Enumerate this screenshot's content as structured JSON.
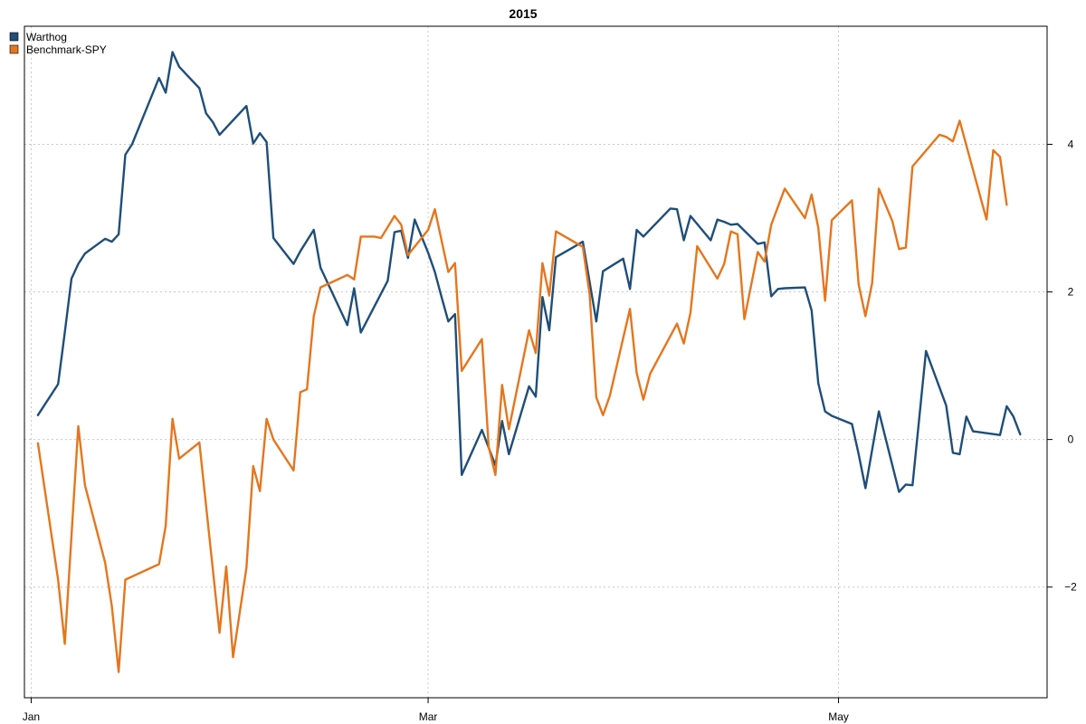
{
  "chart_data": {
    "type": "line",
    "title": "2015",
    "xlabel": "",
    "ylabel": "",
    "x_ticks": [
      "Jan",
      "Mar",
      "May"
    ],
    "x_tick_positions": [
      0,
      59,
      120
    ],
    "y_ticks": [
      -2,
      0,
      2,
      4
    ],
    "xlim": [
      -1,
      151
    ],
    "ylim": [
      -3.5,
      5.6
    ],
    "grid": true,
    "legend_position": "top-left",
    "series": [
      {
        "name": "Warthog",
        "color": "#1F4E79",
        "points": [
          [
            1,
            0.33
          ],
          [
            4,
            0.75
          ],
          [
            5,
            1.45
          ],
          [
            6,
            2.18
          ],
          [
            7,
            2.38
          ],
          [
            8,
            2.52
          ],
          [
            11,
            2.72
          ],
          [
            12,
            2.68
          ],
          [
            13,
            2.78
          ],
          [
            14,
            3.86
          ],
          [
            15,
            4.0
          ],
          [
            17,
            4.45
          ],
          [
            19,
            4.9
          ],
          [
            20,
            4.7
          ],
          [
            21,
            5.25
          ],
          [
            22,
            5.05
          ],
          [
            25,
            4.76
          ],
          [
            26,
            4.42
          ],
          [
            27,
            4.3
          ],
          [
            28,
            4.13
          ],
          [
            32,
            4.52
          ],
          [
            33,
            4.01
          ],
          [
            34,
            4.15
          ],
          [
            35,
            4.03
          ],
          [
            36,
            2.73
          ],
          [
            39,
            2.38
          ],
          [
            40,
            2.55
          ],
          [
            42,
            2.84
          ],
          [
            43,
            2.33
          ],
          [
            47,
            1.55
          ],
          [
            48,
            2.05
          ],
          [
            49,
            1.45
          ],
          [
            53,
            2.15
          ],
          [
            54,
            2.81
          ],
          [
            55,
            2.83
          ],
          [
            56,
            2.46
          ],
          [
            57,
            2.98
          ],
          [
            59,
            2.53
          ],
          [
            60,
            2.27
          ],
          [
            61,
            1.93
          ],
          [
            62,
            1.6
          ],
          [
            63,
            1.7
          ],
          [
            64,
            -0.48
          ],
          [
            67,
            0.13
          ],
          [
            69,
            -0.35
          ],
          [
            70,
            0.25
          ],
          [
            71,
            -0.2
          ],
          [
            74,
            0.72
          ],
          [
            75,
            0.58
          ],
          [
            76,
            1.93
          ],
          [
            77,
            1.48
          ],
          [
            78,
            2.47
          ],
          [
            82,
            2.68
          ],
          [
            84,
            1.6
          ],
          [
            85,
            2.28
          ],
          [
            88,
            2.45
          ],
          [
            89,
            2.04
          ],
          [
            90,
            2.84
          ],
          [
            91,
            2.75
          ],
          [
            95,
            3.13
          ],
          [
            96,
            3.12
          ],
          [
            97,
            2.7
          ],
          [
            98,
            3.03
          ],
          [
            101,
            2.7
          ],
          [
            102,
            2.98
          ],
          [
            103,
            2.95
          ],
          [
            104,
            2.91
          ],
          [
            105,
            2.92
          ],
          [
            108,
            2.65
          ],
          [
            109,
            2.67
          ],
          [
            110,
            1.94
          ],
          [
            111,
            2.04
          ],
          [
            112,
            2.05
          ],
          [
            115,
            2.06
          ],
          [
            116,
            1.75
          ],
          [
            117,
            0.76
          ],
          [
            118,
            0.38
          ],
          [
            119,
            0.32
          ],
          [
            122,
            0.21
          ],
          [
            123,
            -0.2
          ],
          [
            124,
            -0.66
          ],
          [
            126,
            0.38
          ],
          [
            129,
            -0.71
          ],
          [
            130,
            -0.61
          ],
          [
            131,
            -0.62
          ],
          [
            133,
            1.2
          ],
          [
            136,
            0.46
          ],
          [
            137,
            -0.18
          ],
          [
            138,
            -0.2
          ],
          [
            139,
            0.31
          ],
          [
            140,
            0.11
          ],
          [
            144,
            0.06
          ],
          [
            145,
            0.45
          ],
          [
            146,
            0.31
          ],
          [
            147,
            0.07
          ]
        ]
      },
      {
        "name": "Benchmark-SPY",
        "color": "#E5761D",
        "points": [
          [
            1,
            -0.05
          ],
          [
            4,
            -1.9
          ],
          [
            5,
            -2.77
          ],
          [
            7,
            0.18
          ],
          [
            8,
            -0.62
          ],
          [
            11,
            -1.67
          ],
          [
            12,
            -2.26
          ],
          [
            13,
            -3.15
          ],
          [
            14,
            -1.9
          ],
          [
            19,
            -1.69
          ],
          [
            20,
            -1.17
          ],
          [
            21,
            0.28
          ],
          [
            22,
            -0.26
          ],
          [
            25,
            -0.04
          ],
          [
            28,
            -2.62
          ],
          [
            29,
            -1.72
          ],
          [
            30,
            -2.95
          ],
          [
            32,
            -1.74
          ],
          [
            33,
            -0.36
          ],
          [
            34,
            -0.7
          ],
          [
            35,
            0.28
          ],
          [
            36,
            0.0
          ],
          [
            39,
            -0.42
          ],
          [
            40,
            0.64
          ],
          [
            41,
            0.68
          ],
          [
            42,
            1.67
          ],
          [
            43,
            2.06
          ],
          [
            47,
            2.23
          ],
          [
            48,
            2.17
          ],
          [
            49,
            2.75
          ],
          [
            51,
            2.75
          ],
          [
            52,
            2.73
          ],
          [
            54,
            3.03
          ],
          [
            55,
            2.91
          ],
          [
            56,
            2.5
          ],
          [
            59,
            2.84
          ],
          [
            60,
            3.12
          ],
          [
            62,
            2.27
          ],
          [
            63,
            2.39
          ],
          [
            64,
            0.93
          ],
          [
            67,
            1.36
          ],
          [
            68,
            -0.1
          ],
          [
            69,
            -0.48
          ],
          [
            70,
            0.74
          ],
          [
            71,
            0.14
          ],
          [
            74,
            1.48
          ],
          [
            75,
            1.17
          ],
          [
            76,
            2.39
          ],
          [
            77,
            1.95
          ],
          [
            78,
            2.82
          ],
          [
            82,
            2.61
          ],
          [
            83,
            1.97
          ],
          [
            84,
            0.57
          ],
          [
            85,
            0.33
          ],
          [
            86,
            0.59
          ],
          [
            89,
            1.77
          ],
          [
            90,
            0.9
          ],
          [
            91,
            0.54
          ],
          [
            92,
            0.89
          ],
          [
            96,
            1.57
          ],
          [
            97,
            1.3
          ],
          [
            98,
            1.72
          ],
          [
            99,
            2.62
          ],
          [
            102,
            2.18
          ],
          [
            103,
            2.38
          ],
          [
            104,
            2.82
          ],
          [
            105,
            2.78
          ],
          [
            106,
            1.63
          ],
          [
            108,
            2.54
          ],
          [
            109,
            2.41
          ],
          [
            110,
            2.91
          ],
          [
            112,
            3.4
          ],
          [
            115,
            3.0
          ],
          [
            116,
            3.32
          ],
          [
            117,
            2.87
          ],
          [
            118,
            1.88
          ],
          [
            119,
            2.97
          ],
          [
            122,
            3.24
          ],
          [
            123,
            2.1
          ],
          [
            124,
            1.67
          ],
          [
            125,
            2.12
          ],
          [
            126,
            3.4
          ],
          [
            128,
            2.96
          ],
          [
            129,
            2.58
          ],
          [
            130,
            2.6
          ],
          [
            131,
            3.7
          ],
          [
            135,
            4.13
          ],
          [
            136,
            4.1
          ],
          [
            137,
            4.04
          ],
          [
            138,
            4.32
          ],
          [
            142,
            2.98
          ],
          [
            143,
            3.92
          ],
          [
            144,
            3.83
          ],
          [
            145,
            3.18
          ]
        ]
      }
    ]
  }
}
